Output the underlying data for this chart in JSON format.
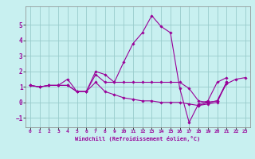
{
  "xlabel": "Windchill (Refroidissement éolien,°C)",
  "ylabel": "",
  "xlim": [
    -0.5,
    23.5
  ],
  "ylim": [
    -1.6,
    6.2
  ],
  "yticks": [
    -1,
    0,
    1,
    2,
    3,
    4,
    5
  ],
  "xticks": [
    0,
    1,
    2,
    3,
    4,
    5,
    6,
    7,
    8,
    9,
    10,
    11,
    12,
    13,
    14,
    15,
    16,
    17,
    18,
    19,
    20,
    21,
    22,
    23
  ],
  "background_color": "#c8f0f0",
  "grid_color": "#99cccc",
  "line_color": "#990099",
  "lines": [
    [
      1.1,
      1.0,
      1.1,
      1.1,
      1.1,
      0.7,
      0.7,
      2.0,
      1.8,
      1.3,
      2.6,
      3.8,
      4.5,
      5.6,
      4.9,
      4.5,
      0.9,
      -1.3,
      -0.1,
      0.1,
      1.3,
      1.6,
      null,
      null
    ],
    [
      1.1,
      1.0,
      1.1,
      1.1,
      1.5,
      0.7,
      0.7,
      1.8,
      1.3,
      1.3,
      1.3,
      1.3,
      1.3,
      1.3,
      1.3,
      1.3,
      1.3,
      0.9,
      0.1,
      0.0,
      0.1,
      1.3,
      null,
      null
    ],
    [
      1.1,
      1.0,
      1.1,
      1.1,
      1.1,
      0.7,
      0.7,
      1.3,
      0.7,
      0.5,
      0.3,
      0.2,
      0.1,
      0.1,
      0.0,
      0.0,
      0.0,
      -0.1,
      -0.2,
      -0.1,
      0.0,
      1.3,
      null,
      null
    ],
    [
      null,
      null,
      null,
      null,
      null,
      null,
      null,
      null,
      null,
      null,
      null,
      null,
      null,
      null,
      null,
      null,
      null,
      null,
      -0.2,
      0.0,
      0.1,
      1.2,
      1.5,
      1.6
    ]
  ]
}
